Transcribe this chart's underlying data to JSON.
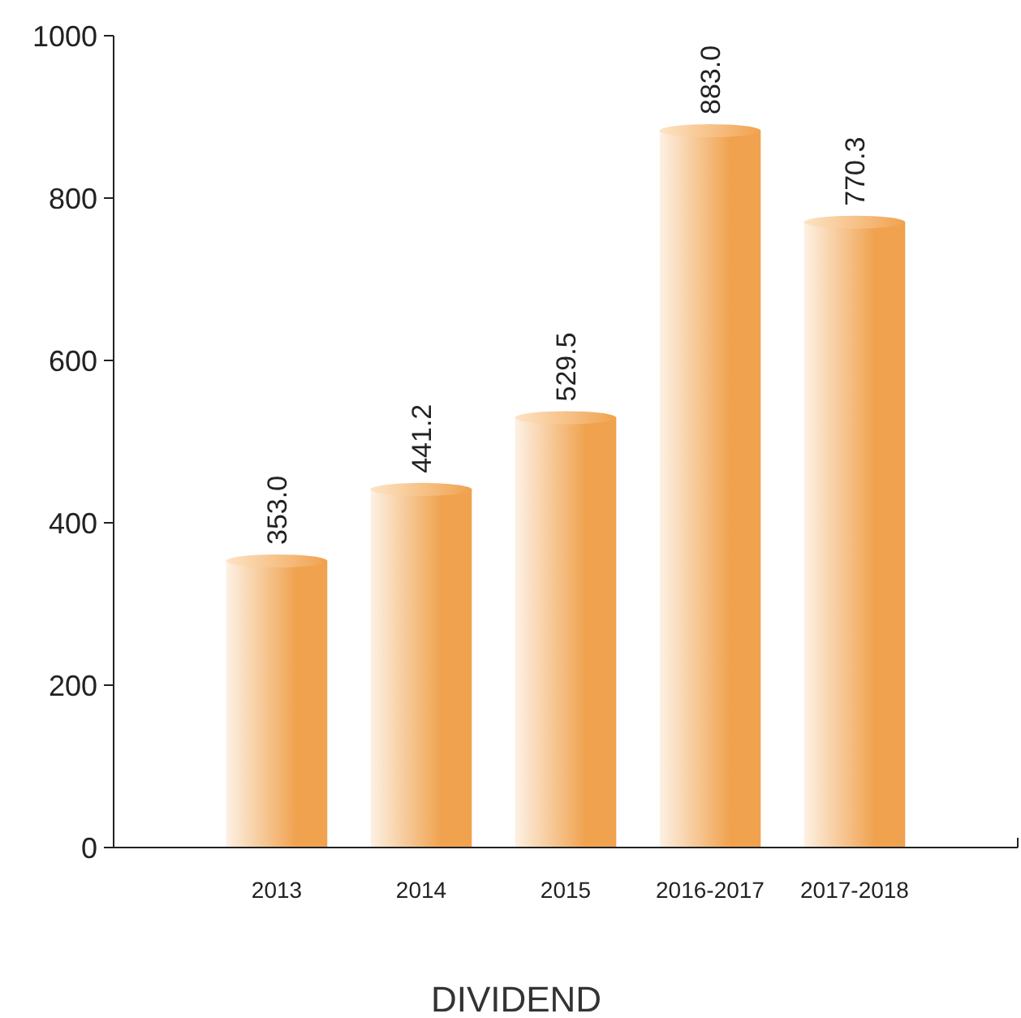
{
  "chart_data": {
    "type": "bar",
    "xlabel": "DIVIDEND",
    "categories": [
      "2013",
      "2014",
      "2015",
      "2016-2017",
      "2017-2018"
    ],
    "values": [
      353.0,
      441.2,
      529.5,
      883.0,
      770.3
    ],
    "value_labels": [
      "353.0",
      "441.2",
      "529.5",
      "883.0",
      "770.3"
    ],
    "color": "#f0a24e",
    "ylim": [
      0,
      1000
    ],
    "yticks": [
      0,
      200,
      400,
      600,
      800,
      1000
    ],
    "grid": false
  }
}
